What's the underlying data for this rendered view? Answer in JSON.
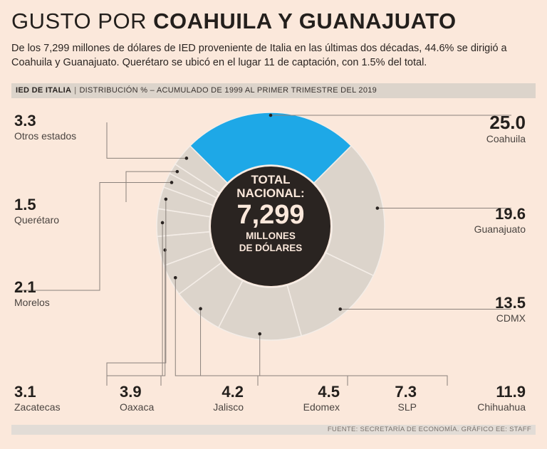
{
  "header": {
    "title_light": "GUSTO POR ",
    "title_bold": "COAHUILA Y GUANAJUATO",
    "subtitle": "De los 7,299 millones de dólares de IED proveniente de Italia en las últimas  dos décadas, 44.6% se dirigió a Coahuila y Guanajuato. Querétaro se ubicó en el lugar 11 de captación, con 1.5% del total.",
    "bar_bold": "IED DE ITALIA",
    "bar_sep": "|",
    "bar_text": "DISTRIBUCIÓN % – ACUMULADO DE 1999 AL PRIMER TRIMESTRE DEL 2019"
  },
  "center": {
    "l1": "TOTAL",
    "l2": "NACIONAL:",
    "value": "7,299",
    "l3": "MILLONES",
    "l4": "DE DÓLARES"
  },
  "footer": "FUENTE: SECRETARÍA DE ECONOMÍA. GRÁFICO EE: STAFF",
  "colors": {
    "background": "#fbe8db",
    "highlight": "#1ea8e7",
    "slice": "#dcd4cb",
    "center": "#2a2421",
    "line": "#8a817b"
  },
  "labels": {
    "coahuila": {
      "value": "25.0",
      "name": "Coahuila"
    },
    "guanajuato": {
      "value": "19.6",
      "name": "Guanajuato"
    },
    "cdmx": {
      "value": "13.5",
      "name": "CDMX"
    },
    "chihuahua": {
      "value": "11.9",
      "name": "Chihuahua"
    },
    "slp": {
      "value": "7.3",
      "name": "SLP"
    },
    "edomex": {
      "value": "4.5",
      "name": "Edomex"
    },
    "jalisco": {
      "value": "4.2",
      "name": "Jalisco"
    },
    "oaxaca": {
      "value": "3.9",
      "name": "Oaxaca"
    },
    "zacatecas": {
      "value": "3.1",
      "name": "Zacatecas"
    },
    "morelos": {
      "value": "2.1",
      "name": "Morelos"
    },
    "queretaro": {
      "value": "1.5",
      "name": "Querétaro"
    },
    "otros": {
      "value": "3.3",
      "name": "Otros estados"
    }
  },
  "chart_data": {
    "type": "pie",
    "title": "IED DE ITALIA | DISTRIBUCIÓN % – ACUMULADO DE 1999 AL PRIMER TRIMESTRE DEL 2019",
    "unit": "%",
    "total_label": "TOTAL NACIONAL: 7,299 MILLONES DE DÓLARES",
    "categories": [
      "Coahuila",
      "Guanajuato",
      "CDMX",
      "Chihuahua",
      "SLP",
      "Edomex",
      "Jalisco",
      "Oaxaca",
      "Zacatecas",
      "Morelos",
      "Querétaro",
      "Otros estados"
    ],
    "values": [
      25.0,
      19.6,
      13.5,
      11.9,
      7.3,
      4.5,
      4.2,
      3.9,
      3.1,
      2.1,
      1.5,
      3.3
    ],
    "highlight": "Coahuila"
  }
}
